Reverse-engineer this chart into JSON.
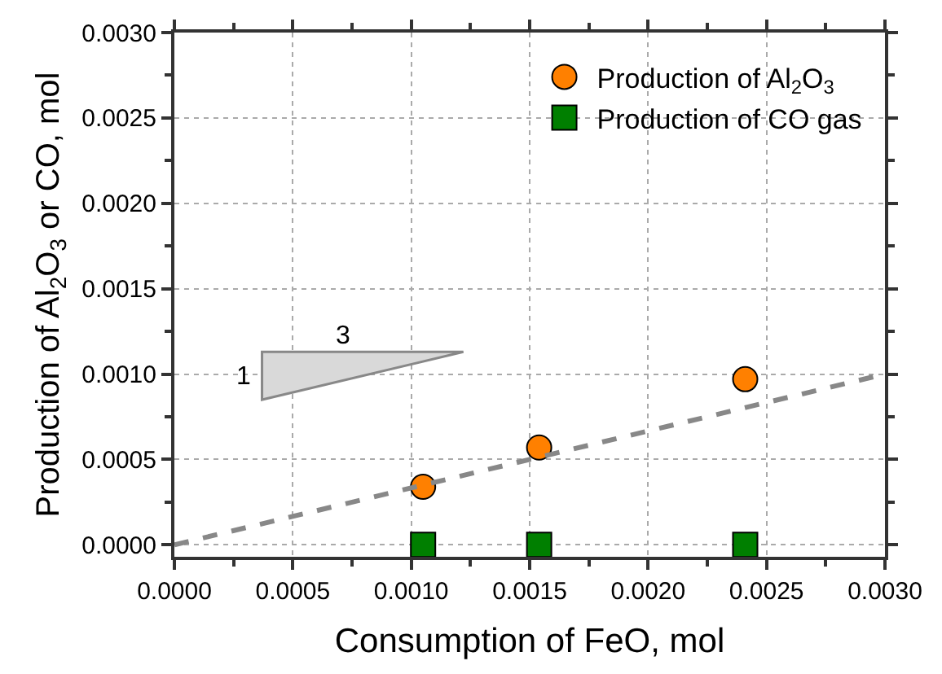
{
  "chart_data": {
    "type": "scatter",
    "xlabel": "Consumption of FeO, mol",
    "ylabel": "Production of Al$_{2}$O$_{3}$ or CO, mol",
    "xlim": [
      0.0,
      0.003
    ],
    "ylim": [
      -7e-05,
      0.003
    ],
    "xticks": [
      {
        "value": 0,
        "label": "0.0000"
      },
      {
        "value": 0.0005,
        "label": "0.0005"
      },
      {
        "value": 0.001,
        "label": "0.0010"
      },
      {
        "value": 0.0015,
        "label": "0.0015"
      },
      {
        "value": 0.002,
        "label": "0.0020"
      },
      {
        "value": 0.0025,
        "label": "0.0025"
      },
      {
        "value": 0.003,
        "label": "0.0030"
      }
    ],
    "yticks": [
      {
        "value": 0,
        "label": "0.0000"
      },
      {
        "value": 0.0005,
        "label": "0.0005"
      },
      {
        "value": 0.001,
        "label": "0.0010"
      },
      {
        "value": 0.0015,
        "label": "0.0015"
      },
      {
        "value": 0.002,
        "label": "0.0020"
      },
      {
        "value": 0.0025,
        "label": "0.0025"
      },
      {
        "value": 0.003,
        "label": "0.0030"
      }
    ],
    "grid": true,
    "legend": "top right",
    "series": [
      {
        "name": "Production of Al$_{2}$O$_{3}$",
        "marker": "circle",
        "color": "#ff8000",
        "x": [
          0.00105,
          0.00154,
          0.00241
        ],
        "values": [
          0.00034,
          0.00057,
          0.00097
        ]
      },
      {
        "name": "Production of CO gas",
        "marker": "square",
        "color": "#007f00",
        "x": [
          0.00105,
          0.00154,
          0.00241
        ],
        "values": [
          0.0,
          0.0,
          0.0
        ]
      },
      {
        "type": "line",
        "line_style": "dashed",
        "marker": "none",
        "color": "#888888",
        "x": [
          0.0,
          0.003
        ],
        "values": [
          0.0,
          0.001
        ]
      }
    ],
    "annotations": [
      "3",
      "1"
    ]
  }
}
